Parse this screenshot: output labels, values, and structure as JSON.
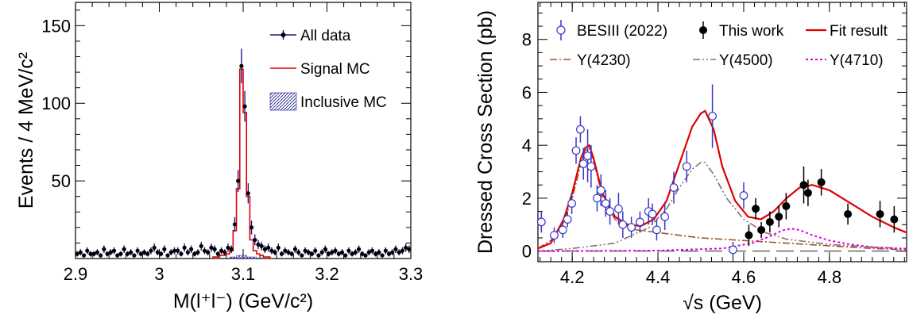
{
  "chart_data": [
    {
      "type": "histogram",
      "xlabel": "M(l⁺l⁻) (GeV/c²)",
      "ylabel": "Events / 4 MeV/c²",
      "xlim": [
        2.9,
        3.3
      ],
      "ylim": [
        0,
        165
      ],
      "xticks": [
        "2.9",
        "3",
        "3.1",
        "3.2",
        "3.3"
      ],
      "yticks": [
        "50",
        "100",
        "150"
      ],
      "legend_position": "top-right",
      "legend": [
        {
          "label": "All data",
          "color": "#1a1a8c",
          "style": "marker-line"
        },
        {
          "label": "Signal MC",
          "color": "#e00000",
          "style": "line"
        },
        {
          "label": "Inclusive MC",
          "color": "#1a1a8c",
          "style": "hatched"
        }
      ],
      "series": [
        {
          "name": "All data",
          "x": [
            2.902,
            2.906,
            2.91,
            2.914,
            2.918,
            2.922,
            2.926,
            2.93,
            2.934,
            2.938,
            2.942,
            2.946,
            2.95,
            2.954,
            2.958,
            2.962,
            2.966,
            2.97,
            2.974,
            2.978,
            2.982,
            2.986,
            2.99,
            2.994,
            2.998,
            3.002,
            3.006,
            3.01,
            3.014,
            3.018,
            3.022,
            3.026,
            3.03,
            3.034,
            3.038,
            3.042,
            3.046,
            3.05,
            3.054,
            3.058,
            3.062,
            3.066,
            3.07,
            3.074,
            3.078,
            3.082,
            3.086,
            3.09,
            3.094,
            3.098,
            3.102,
            3.106,
            3.11,
            3.114,
            3.118,
            3.122,
            3.126,
            3.13,
            3.134,
            3.138,
            3.142,
            3.146,
            3.15,
            3.154,
            3.158,
            3.162,
            3.166,
            3.17,
            3.174,
            3.178,
            3.182,
            3.186,
            3.19,
            3.194,
            3.198,
            3.202,
            3.206,
            3.21,
            3.214,
            3.218,
            3.222,
            3.226,
            3.23,
            3.234,
            3.238,
            3.242,
            3.246,
            3.25,
            3.254,
            3.258,
            3.262,
            3.266,
            3.27,
            3.274,
            3.278,
            3.282,
            3.286,
            3.29,
            3.294,
            3.298
          ],
          "y": [
            3,
            4,
            2,
            5,
            3,
            3,
            4,
            2,
            6,
            3,
            4,
            5,
            2,
            3,
            6,
            3,
            4,
            2,
            5,
            3,
            4,
            3,
            5,
            7,
            4,
            3,
            6,
            2,
            4,
            5,
            5,
            3,
            7,
            4,
            6,
            3,
            4,
            8,
            5,
            4,
            7,
            6,
            3,
            5,
            4,
            7,
            6,
            22,
            50,
            124,
            98,
            42,
            20,
            12,
            9,
            8,
            6,
            7,
            5,
            4,
            7,
            3,
            5,
            4,
            3,
            6,
            4,
            2,
            5,
            4,
            3,
            5,
            2,
            4,
            6,
            3,
            4,
            5,
            3,
            4,
            2,
            5,
            3,
            4,
            6,
            3,
            2,
            4,
            5,
            3,
            4,
            2,
            5,
            3,
            4,
            6,
            4,
            5,
            7,
            6
          ],
          "yerr": "sqrt(N)"
        },
        {
          "name": "Signal MC",
          "x": [
            3.066,
            3.07,
            3.074,
            3.078,
            3.082,
            3.086,
            3.09,
            3.094,
            3.098,
            3.102,
            3.106,
            3.11,
            3.114,
            3.118,
            3.122,
            3.126,
            3.13
          ],
          "y": [
            1,
            1,
            2,
            2,
            3,
            5,
            18,
            45,
            122,
            94,
            40,
            12,
            5,
            3,
            2,
            1,
            1
          ]
        },
        {
          "name": "Inclusive MC",
          "x": [
            3.086,
            3.09,
            3.094,
            3.098,
            3.102,
            3.106,
            3.11,
            3.114
          ],
          "y": [
            1,
            1,
            2,
            2,
            2,
            1,
            1,
            1
          ]
        }
      ]
    },
    {
      "type": "scatter+line",
      "xlabel": "√s (GeV)",
      "ylabel": "Dressed Cross Section (pb)",
      "xlim": [
        4.12,
        4.98
      ],
      "ylim": [
        -0.4,
        9.4
      ],
      "xticks": [
        "4.2",
        "4.4",
        "4.6",
        "4.8"
      ],
      "yticks": [
        "0",
        "2",
        "4",
        "6",
        "8"
      ],
      "legend_position": "top",
      "legend": [
        {
          "label": "BESIII (2022)",
          "color": "#3838c8",
          "style": "open-circle"
        },
        {
          "label": "This work",
          "color": "#000000",
          "style": "filled-circle"
        },
        {
          "label": "Fit result",
          "color": "#e00000",
          "style": "line"
        },
        {
          "label": "Y(4230)",
          "color": "#a0522d",
          "style": "dash-dot"
        },
        {
          "label": "Y(4500)",
          "color": "#8c6e6e",
          "style": "dash-dot-dot"
        },
        {
          "label": "Y(4710)",
          "color": "#e000e0",
          "style": "dotted"
        }
      ],
      "series": [
        {
          "name": "BESIII (2022)",
          "x": [
            4.128,
            4.158,
            4.178,
            4.189,
            4.199,
            4.209,
            4.219,
            4.226,
            4.236,
            4.244,
            4.258,
            4.267,
            4.278,
            4.288,
            4.308,
            4.318,
            4.338,
            4.358,
            4.378,
            4.387,
            4.397,
            4.416,
            4.437,
            4.467,
            4.527,
            4.575,
            4.6
          ],
          "y": [
            1.1,
            0.6,
            0.8,
            1.2,
            1.8,
            3.8,
            4.6,
            3.3,
            3.6,
            3.2,
            2.0,
            2.3,
            1.8,
            1.5,
            1.6,
            1.0,
            0.9,
            1.1,
            1.5,
            1.4,
            0.8,
            1.3,
            2.4,
            3.2,
            5.1,
            0.05,
            2.1
          ],
          "yerr": [
            0.4,
            0.3,
            0.3,
            0.3,
            0.4,
            0.5,
            0.5,
            0.6,
            1.0,
            0.8,
            0.5,
            0.6,
            0.5,
            0.5,
            0.6,
            0.5,
            0.4,
            0.4,
            0.5,
            0.4,
            0.4,
            0.5,
            0.6,
            0.6,
            1.2,
            0.3,
            0.5
          ]
        },
        {
          "name": "This work",
          "x": [
            4.612,
            4.628,
            4.641,
            4.661,
            4.682,
            4.699,
            4.74,
            4.75,
            4.781,
            4.843,
            4.918,
            4.951
          ],
          "y": [
            0.6,
            1.6,
            0.8,
            1.1,
            1.3,
            1.7,
            2.5,
            2.2,
            2.6,
            1.4,
            1.4,
            1.2
          ],
          "yerr": [
            0.4,
            0.4,
            0.3,
            0.4,
            0.4,
            0.5,
            0.7,
            0.5,
            0.5,
            0.4,
            0.5,
            0.5
          ]
        },
        {
          "name": "Fit result",
          "x": [
            4.12,
            4.15,
            4.18,
            4.2,
            4.22,
            4.23,
            4.24,
            4.25,
            4.27,
            4.3,
            4.33,
            4.36,
            4.39,
            4.42,
            4.45,
            4.48,
            4.5,
            4.51,
            4.53,
            4.55,
            4.58,
            4.61,
            4.64,
            4.67,
            4.7,
            4.73,
            4.76,
            4.8,
            4.85,
            4.9,
            4.95,
            4.98
          ],
          "y": [
            0.1,
            0.3,
            1.2,
            2.2,
            3.5,
            3.9,
            4.0,
            3.5,
            2.2,
            1.3,
            1.0,
            0.95,
            1.2,
            1.9,
            3.3,
            4.7,
            5.2,
            5.3,
            4.6,
            3.2,
            1.9,
            1.3,
            1.2,
            1.5,
            2.0,
            2.4,
            2.5,
            2.3,
            1.8,
            1.3,
            0.9,
            0.7
          ]
        },
        {
          "name": "Y(4230)",
          "x": [
            4.12,
            4.15,
            4.18,
            4.2,
            4.22,
            4.23,
            4.24,
            4.25,
            4.27,
            4.3,
            4.35,
            4.4,
            4.5,
            4.6,
            4.7,
            4.8,
            4.9,
            4.98
          ],
          "y": [
            0.1,
            0.4,
            1.1,
            2.0,
            3.3,
            3.8,
            3.9,
            3.4,
            2.1,
            1.2,
            0.8,
            0.7,
            0.5,
            0.4,
            0.3,
            0.2,
            0.1,
            0.05
          ]
        },
        {
          "name": "Y(4500)",
          "x": [
            4.12,
            4.2,
            4.3,
            4.38,
            4.42,
            4.45,
            4.48,
            4.5,
            4.51,
            4.53,
            4.56,
            4.6,
            4.65,
            4.7,
            4.8,
            4.9,
            4.98
          ],
          "y": [
            0.0,
            0.1,
            0.3,
            0.9,
            1.6,
            2.4,
            3.1,
            3.35,
            3.35,
            2.9,
            2.0,
            1.2,
            0.7,
            0.45,
            0.25,
            0.15,
            0.1
          ]
        },
        {
          "name": "Y(4710)",
          "x": [
            4.12,
            4.4,
            4.55,
            4.62,
            4.66,
            4.69,
            4.71,
            4.73,
            4.76,
            4.8,
            4.85,
            4.9,
            4.98
          ],
          "y": [
            0.0,
            0.02,
            0.1,
            0.3,
            0.55,
            0.78,
            0.85,
            0.8,
            0.6,
            0.4,
            0.25,
            0.15,
            0.08
          ]
        }
      ]
    }
  ]
}
